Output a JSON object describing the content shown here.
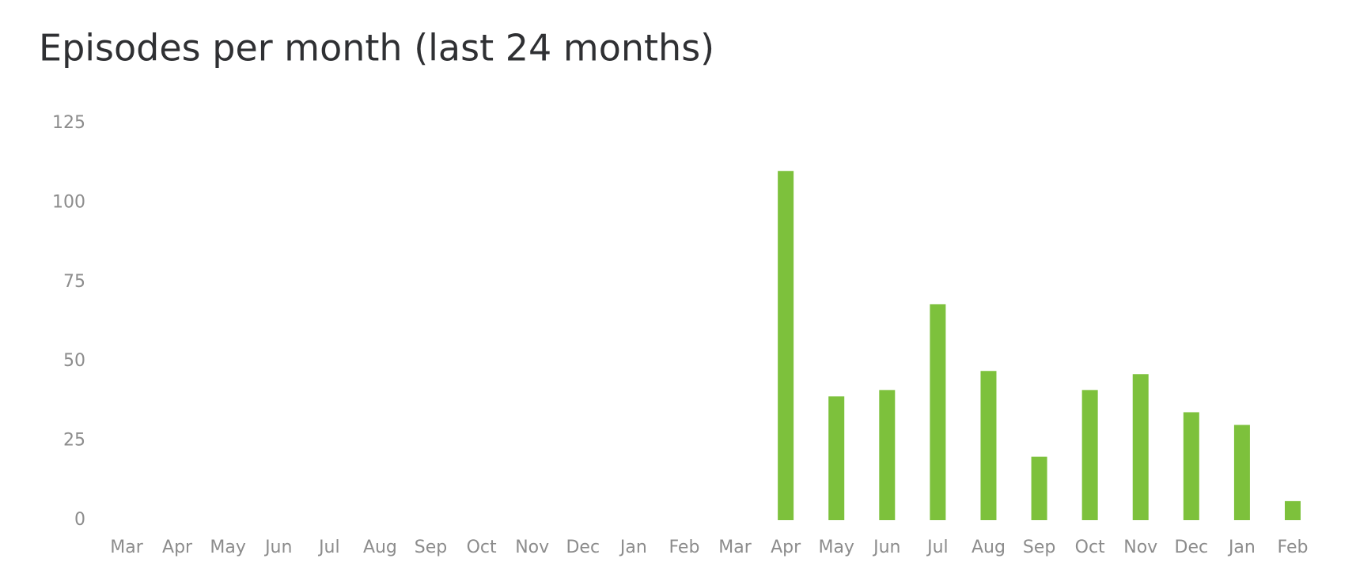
{
  "chart_data": {
    "type": "bar",
    "title": "Episodes per month (last 24 months)",
    "categories": [
      "Mar",
      "Apr",
      "May",
      "Jun",
      "Jul",
      "Aug",
      "Sep",
      "Oct",
      "Nov",
      "Dec",
      "Jan",
      "Feb",
      "Mar",
      "Apr",
      "May",
      "Jun",
      "Jul",
      "Aug",
      "Sep",
      "Oct",
      "Nov",
      "Dec",
      "Jan",
      "Feb"
    ],
    "values": [
      0,
      0,
      0,
      0,
      0,
      0,
      0,
      0,
      0,
      0,
      0,
      0,
      0,
      110,
      39,
      41,
      68,
      47,
      20,
      41,
      46,
      34,
      30,
      6
    ],
    "color": "#7dc13c",
    "ylim": [
      0,
      125
    ],
    "yticks": [
      0,
      25,
      50,
      75,
      100,
      125
    ],
    "grid": false
  }
}
